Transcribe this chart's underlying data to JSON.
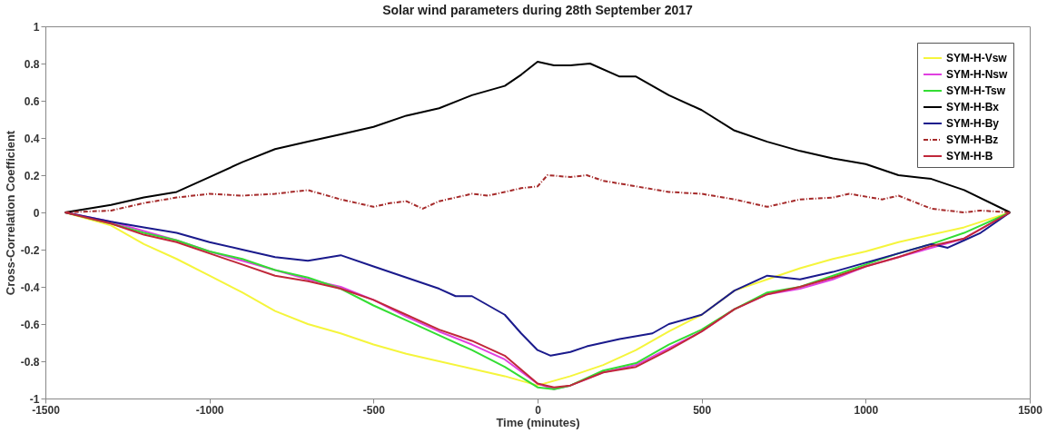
{
  "chart_data": {
    "type": "line",
    "title": "Solar wind parameters during 28th September 2017",
    "xlabel": "Time (minutes)",
    "ylabel": "Cross-Correlation Coefficient",
    "xlim": [
      -1500,
      1500
    ],
    "xticks": [
      -1500,
      -1000,
      -500,
      0,
      500,
      1000,
      1500
    ],
    "ylim": [
      -1,
      1
    ],
    "yticks": [
      -1,
      -0.8,
      -0.6,
      -0.4,
      -0.2,
      0,
      0.2,
      0.4,
      0.6,
      0.8,
      1
    ],
    "grid": false,
    "legend": "top right",
    "marker": "none",
    "series": [
      {
        "name": "SYM-H-Vsw",
        "color": "#f5f53c",
        "x": [
          -1440,
          -1300,
          -1200,
          -1100,
          -1000,
          -900,
          -800,
          -700,
          -600,
          -500,
          -400,
          -300,
          -200,
          -100,
          0,
          100,
          200,
          300,
          400,
          500,
          600,
          700,
          800,
          900,
          1000,
          1100,
          1200,
          1300,
          1440
        ],
        "values": [
          0,
          -0.07,
          -0.17,
          -0.25,
          -0.34,
          -0.43,
          -0.53,
          -0.6,
          -0.65,
          -0.71,
          -0.76,
          -0.8,
          -0.84,
          -0.88,
          -0.93,
          -0.88,
          -0.82,
          -0.74,
          -0.64,
          -0.55,
          -0.42,
          -0.36,
          -0.3,
          -0.25,
          -0.21,
          -0.16,
          -0.12,
          -0.08,
          0
        ]
      },
      {
        "name": "SYM-H-Nsw",
        "color": "#e040e0",
        "x": [
          -1440,
          -1300,
          -1200,
          -1100,
          -1000,
          -900,
          -800,
          -700,
          -600,
          -500,
          -400,
          -300,
          -200,
          -100,
          0,
          50,
          100,
          200,
          300,
          400,
          500,
          600,
          700,
          800,
          900,
          1000,
          1100,
          1200,
          1300,
          1440
        ],
        "values": [
          0,
          -0.05,
          -0.1,
          -0.15,
          -0.21,
          -0.26,
          -0.31,
          -0.36,
          -0.4,
          -0.47,
          -0.56,
          -0.64,
          -0.71,
          -0.79,
          -0.92,
          -0.95,
          -0.93,
          -0.86,
          -0.82,
          -0.73,
          -0.64,
          -0.52,
          -0.44,
          -0.41,
          -0.36,
          -0.29,
          -0.24,
          -0.19,
          -0.14,
          0
        ]
      },
      {
        "name": "SYM-H-Tsw",
        "color": "#33dd33",
        "x": [
          -1440,
          -1300,
          -1200,
          -1100,
          -1000,
          -900,
          -800,
          -700,
          -600,
          -500,
          -400,
          -300,
          -200,
          -100,
          0,
          50,
          100,
          200,
          300,
          400,
          500,
          600,
          700,
          800,
          900,
          1000,
          1100,
          1200,
          1300,
          1440
        ],
        "values": [
          0,
          -0.06,
          -0.11,
          -0.15,
          -0.21,
          -0.25,
          -0.31,
          -0.35,
          -0.41,
          -0.5,
          -0.58,
          -0.66,
          -0.74,
          -0.83,
          -0.94,
          -0.95,
          -0.93,
          -0.85,
          -0.81,
          -0.71,
          -0.63,
          -0.52,
          -0.43,
          -0.4,
          -0.34,
          -0.28,
          -0.22,
          -0.17,
          -0.11,
          0
        ]
      },
      {
        "name": "SYM-H-Bx",
        "color": "#000000",
        "x": [
          -1440,
          -1300,
          -1200,
          -1100,
          -1000,
          -900,
          -800,
          -700,
          -600,
          -500,
          -400,
          -300,
          -200,
          -100,
          -50,
          0,
          50,
          100,
          160,
          250,
          300,
          400,
          500,
          600,
          700,
          800,
          900,
          1000,
          1100,
          1200,
          1300,
          1440
        ],
        "values": [
          0,
          0.04,
          0.08,
          0.11,
          0.19,
          0.27,
          0.34,
          0.38,
          0.42,
          0.46,
          0.52,
          0.56,
          0.63,
          0.68,
          0.74,
          0.81,
          0.79,
          0.79,
          0.8,
          0.73,
          0.73,
          0.63,
          0.55,
          0.44,
          0.38,
          0.33,
          0.29,
          0.26,
          0.2,
          0.18,
          0.12,
          0
        ]
      },
      {
        "name": "SYM-H-By",
        "color": "#1a1a8c",
        "x": [
          -1440,
          -1300,
          -1200,
          -1100,
          -1000,
          -900,
          -800,
          -700,
          -600,
          -500,
          -400,
          -300,
          -250,
          -200,
          -100,
          -50,
          0,
          40,
          100,
          150,
          250,
          350,
          400,
          500,
          600,
          700,
          800,
          900,
          1000,
          1100,
          1200,
          1250,
          1300,
          1350,
          1440
        ],
        "values": [
          0,
          -0.05,
          -0.08,
          -0.11,
          -0.16,
          -0.2,
          -0.24,
          -0.26,
          -0.23,
          -0.29,
          -0.35,
          -0.41,
          -0.45,
          -0.45,
          -0.55,
          -0.65,
          -0.74,
          -0.77,
          -0.75,
          -0.72,
          -0.68,
          -0.65,
          -0.6,
          -0.55,
          -0.42,
          -0.34,
          -0.36,
          -0.32,
          -0.27,
          -0.22,
          -0.17,
          -0.19,
          -0.15,
          -0.11,
          0
        ]
      },
      {
        "name": "SYM-H-Bz",
        "color": "#a52a2a",
        "line_style": "dashed",
        "x": [
          -1440,
          -1300,
          -1200,
          -1100,
          -1000,
          -900,
          -800,
          -700,
          -600,
          -500,
          -450,
          -400,
          -350,
          -300,
          -200,
          -150,
          -100,
          -50,
          0,
          30,
          100,
          150,
          200,
          300,
          400,
          500,
          600,
          700,
          800,
          900,
          950,
          1050,
          1100,
          1200,
          1300,
          1350,
          1440
        ],
        "values": [
          0,
          0.01,
          0.05,
          0.08,
          0.1,
          0.09,
          0.1,
          0.12,
          0.07,
          0.03,
          0.05,
          0.06,
          0.02,
          0.06,
          0.1,
          0.09,
          0.11,
          0.13,
          0.14,
          0.2,
          0.19,
          0.2,
          0.17,
          0.14,
          0.11,
          0.1,
          0.07,
          0.03,
          0.07,
          0.08,
          0.1,
          0.07,
          0.09,
          0.02,
          0,
          0.01,
          0
        ]
      },
      {
        "name": "SYM-H-B",
        "color": "#c0283a",
        "x": [
          -1440,
          -1300,
          -1200,
          -1100,
          -1000,
          -900,
          -800,
          -700,
          -600,
          -500,
          -400,
          -300,
          -200,
          -100,
          0,
          50,
          100,
          200,
          300,
          400,
          500,
          600,
          700,
          800,
          900,
          1000,
          1100,
          1200,
          1300,
          1440
        ],
        "values": [
          0,
          -0.06,
          -0.12,
          -0.16,
          -0.22,
          -0.28,
          -0.34,
          -0.37,
          -0.41,
          -0.47,
          -0.55,
          -0.63,
          -0.69,
          -0.77,
          -0.92,
          -0.94,
          -0.93,
          -0.86,
          -0.83,
          -0.74,
          -0.64,
          -0.52,
          -0.44,
          -0.4,
          -0.35,
          -0.29,
          -0.24,
          -0.18,
          -0.14,
          0
        ]
      }
    ]
  }
}
